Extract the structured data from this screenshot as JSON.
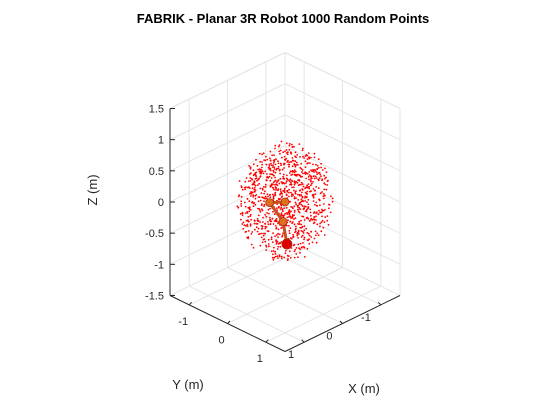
{
  "chart_data": {
    "type": "scatter",
    "projection": "3d",
    "title": "FABRIK - Planar 3R Robot 1000 Random Points",
    "xlabel": "X (m)",
    "ylabel": "Y (m)",
    "zlabel": "Z (m)",
    "xlim": [
      -1.5,
      1.5
    ],
    "ylim": [
      -1.5,
      1.5
    ],
    "zlim": [
      -1.5,
      1.5
    ],
    "xticks": [
      "-1",
      "0",
      "1"
    ],
    "yticks": [
      "-1",
      "0",
      "1"
    ],
    "zticks": [
      "-1.5",
      "-1",
      "-0.5",
      "0",
      "0.5",
      "1",
      "1.5"
    ],
    "grid": true,
    "legend": "none",
    "point_count": 1000,
    "points_distribution": "random within reachable sphere of radius 0.9",
    "robot": {
      "joints": [
        {
          "x": 0.0,
          "y": 0.0,
          "z": 0.0
        },
        {
          "x": -0.35,
          "y": 0.05,
          "z": -0.1
        },
        {
          "x": -0.25,
          "y": -0.2,
          "z": -0.45
        },
        {
          "x": -0.1,
          "y": -0.15,
          "z": -0.75
        }
      ]
    },
    "colors": {
      "points": "#ff0000",
      "robot_link": "#c8501e",
      "robot_joint": "#e0701e",
      "end_effector": "#e00000",
      "grid": "#e5e5e5",
      "axis": "#262626"
    }
  }
}
